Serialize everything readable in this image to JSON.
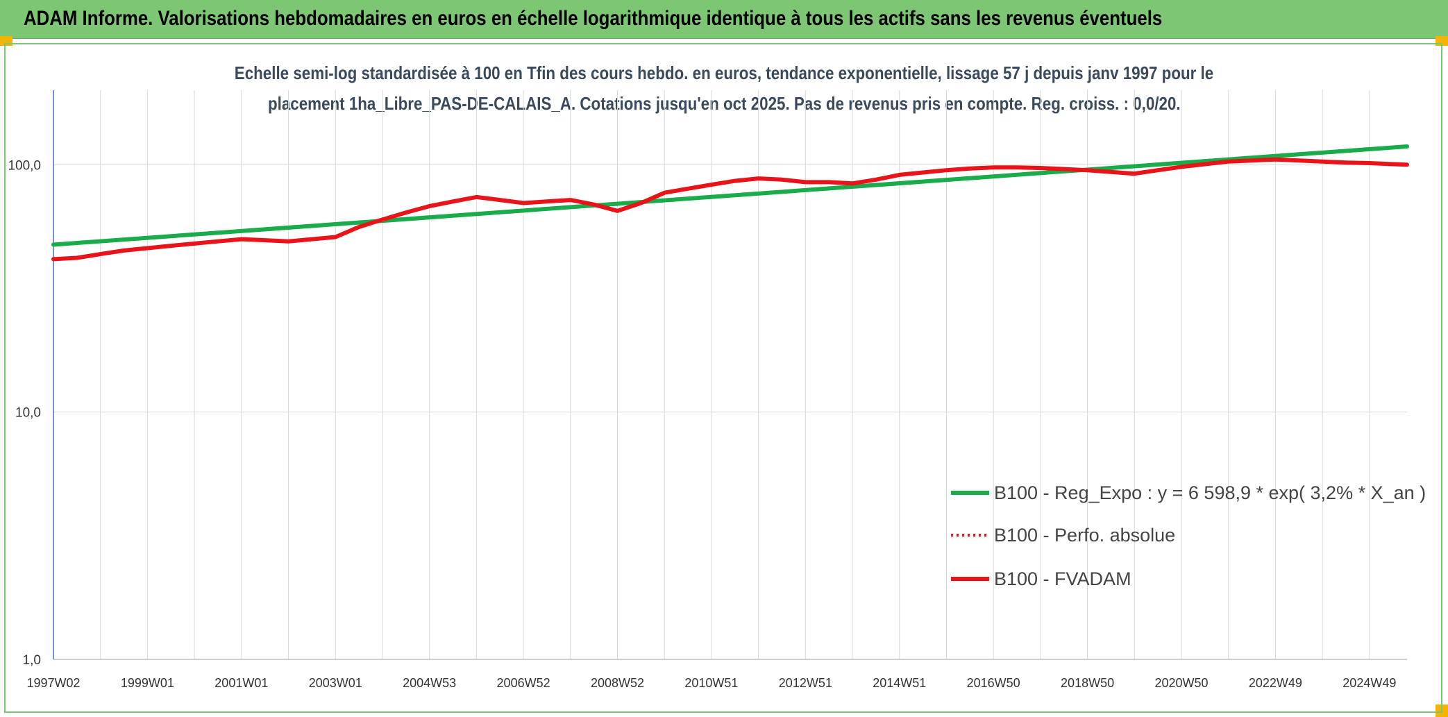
{
  "banner": {
    "title": "ADAM Informe. Valorisations hebdomadaires en euros en échelle logarithmique identique à tous les actifs sans les revenus éventuels"
  },
  "colors": {
    "banner": "#7dc674",
    "regression": "#1aab4b",
    "fvadam": "#e8141a",
    "perfo": "#d61f1f",
    "grid": "#d9d9d9",
    "axis": "#4472c4"
  },
  "chart_data": {
    "type": "line",
    "title_line1": "Echelle semi-log standardisée à 100 en Tfin des cours hebdo. en euros, tendance exponentielle, lissage 57 j depuis janv 1997 pour le",
    "title_line2": "placement 1ha_Libre_PAS-DE-CALAIS_A. Cotations jusqu'en oct 2025. Pas de revenus pris en compte. Reg. croiss. : 0,0/20.",
    "y_scale": "log",
    "ylim": [
      1,
      200
    ],
    "xlim": [
      1997.0,
      2025.8
    ],
    "y_ticks": [
      {
        "value": 1,
        "label": "1,0"
      },
      {
        "value": 10,
        "label": "10,0"
      },
      {
        "value": 100,
        "label": "100,0"
      }
    ],
    "x_ticks": [
      {
        "value": 1997.0,
        "label": "1997W02"
      },
      {
        "value": 1999.0,
        "label": "1999W01"
      },
      {
        "value": 2001.0,
        "label": "2001W01"
      },
      {
        "value": 2003.0,
        "label": "2003W01"
      },
      {
        "value": 2005.0,
        "label": "2004W53"
      },
      {
        "value": 2007.0,
        "label": "2006W52"
      },
      {
        "value": 2009.0,
        "label": "2008W52"
      },
      {
        "value": 2011.0,
        "label": "2010W51"
      },
      {
        "value": 2013.0,
        "label": "2012W51"
      },
      {
        "value": 2015.0,
        "label": "2014W51"
      },
      {
        "value": 2017.0,
        "label": "2016W50"
      },
      {
        "value": 2019.0,
        "label": "2018W50"
      },
      {
        "value": 2021.0,
        "label": "2020W50"
      },
      {
        "value": 2023.0,
        "label": "2022W49"
      },
      {
        "value": 2025.0,
        "label": "2024W49"
      }
    ],
    "grid": true,
    "legend_position": "bottom-right",
    "series": [
      {
        "name": "B100 - Reg_Expo : y = 6 598,9 * exp( 3,2% *  X_an )",
        "style": "solid",
        "x": [
          1997.0,
          2025.8
        ],
        "values": [
          47.5,
          118.5
        ]
      },
      {
        "name": "B100 - Perfo. absolue",
        "style": "dotted",
        "x": [],
        "values": []
      },
      {
        "name": "B100 - FVADAM",
        "style": "solid",
        "x": [
          1997.0,
          1997.5,
          1998.0,
          1998.5,
          1999.0,
          1999.5,
          2000.0,
          2000.5,
          2001.0,
          2001.5,
          2002.0,
          2002.5,
          2003.0,
          2003.5,
          2004.0,
          2004.5,
          2005.0,
          2005.5,
          2006.0,
          2006.5,
          2007.0,
          2007.5,
          2008.0,
          2008.5,
          2009.0,
          2009.5,
          2010.0,
          2010.5,
          2011.0,
          2011.5,
          2012.0,
          2012.5,
          2013.0,
          2013.5,
          2014.0,
          2014.5,
          2015.0,
          2015.5,
          2016.0,
          2016.5,
          2017.0,
          2017.5,
          2018.0,
          2018.5,
          2019.0,
          2019.5,
          2020.0,
          2020.5,
          2021.0,
          2021.5,
          2022.0,
          2022.5,
          2023.0,
          2023.5,
          2024.0,
          2024.5,
          2025.0,
          2025.5,
          2025.8
        ],
        "values": [
          41.5,
          42.0,
          43.5,
          45.0,
          46.0,
          47.0,
          48.0,
          49.0,
          50.0,
          49.5,
          49.0,
          50.0,
          51.0,
          56.0,
          60.0,
          64.0,
          68.0,
          71.0,
          74.0,
          72.0,
          70.0,
          71.0,
          72.0,
          69.0,
          65.0,
          70.0,
          77.0,
          80.0,
          83.0,
          86.0,
          88.0,
          87.0,
          85.0,
          85.0,
          84.0,
          87.0,
          91.0,
          93.0,
          95.0,
          96.5,
          97.5,
          97.5,
          97.0,
          96.0,
          95.0,
          93.5,
          92.0,
          95.0,
          98.0,
          100.5,
          103.0,
          104.0,
          105.0,
          104.0,
          103.0,
          102.0,
          101.5,
          100.5,
          100.0
        ]
      }
    ]
  }
}
